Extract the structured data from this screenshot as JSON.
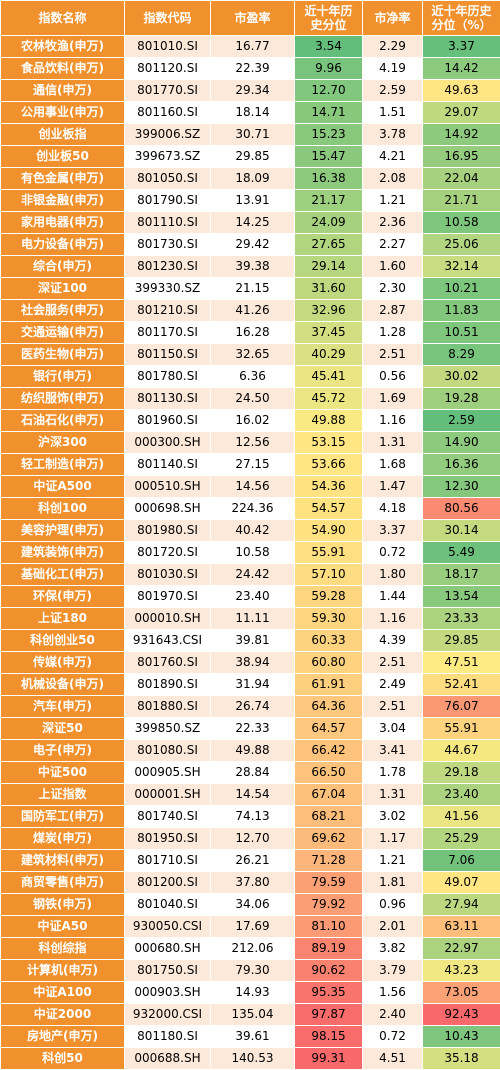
{
  "headers": [
    "指数名称",
    "指数代码",
    "市盈率",
    "近十年历史分位",
    "市净率",
    "近十年历史分位（%）"
  ],
  "chart_data": {
    "type": "table",
    "columns": [
      "指数名称",
      "指数代码",
      "市盈率",
      "近十年历史分位",
      "市净率",
      "近十年历史分位（%）"
    ],
    "rows": [
      [
        "农林牧渔(申万)",
        "801010.SI",
        "16.77",
        "3.54",
        "2.29",
        "3.37"
      ],
      [
        "食品饮料(申万)",
        "801120.SI",
        "22.39",
        "9.96",
        "4.19",
        "14.42"
      ],
      [
        "通信(申万)",
        "801770.SI",
        "29.34",
        "12.70",
        "2.59",
        "49.63"
      ],
      [
        "公用事业(申万)",
        "801160.SI",
        "18.14",
        "14.71",
        "1.51",
        "29.07"
      ],
      [
        "创业板指",
        "399006.SZ",
        "30.71",
        "15.23",
        "3.78",
        "14.92"
      ],
      [
        "创业板50",
        "399673.SZ",
        "29.85",
        "15.47",
        "4.21",
        "16.95"
      ],
      [
        "有色金属(申万)",
        "801050.SI",
        "18.09",
        "16.38",
        "2.08",
        "22.04"
      ],
      [
        "非银金融(申万)",
        "801790.SI",
        "13.91",
        "21.17",
        "1.21",
        "21.71"
      ],
      [
        "家用电器(申万)",
        "801110.SI",
        "14.25",
        "24.09",
        "2.36",
        "10.58"
      ],
      [
        "电力设备(申万)",
        "801730.SI",
        "29.42",
        "27.65",
        "2.27",
        "25.06"
      ],
      [
        "综合(申万)",
        "801230.SI",
        "39.38",
        "29.14",
        "1.60",
        "32.14"
      ],
      [
        "深证100",
        "399330.SZ",
        "21.15",
        "31.60",
        "2.30",
        "10.21"
      ],
      [
        "社会服务(申万)",
        "801210.SI",
        "41.26",
        "32.96",
        "2.87",
        "11.83"
      ],
      [
        "交通运输(申万)",
        "801170.SI",
        "16.28",
        "37.45",
        "1.28",
        "10.51"
      ],
      [
        "医药生物(申万)",
        "801150.SI",
        "32.65",
        "40.29",
        "2.51",
        "8.29"
      ],
      [
        "银行(申万)",
        "801780.SI",
        "6.36",
        "45.41",
        "0.56",
        "30.02"
      ],
      [
        "纺织服饰(申万)",
        "801130.SI",
        "24.50",
        "45.72",
        "1.69",
        "19.28"
      ],
      [
        "石油石化(申万)",
        "801960.SI",
        "16.02",
        "49.88",
        "1.16",
        "2.59"
      ],
      [
        "沪深300",
        "000300.SH",
        "12.56",
        "53.15",
        "1.31",
        "14.90"
      ],
      [
        "轻工制造(申万)",
        "801140.SI",
        "27.15",
        "53.66",
        "1.68",
        "16.36"
      ],
      [
        "中证A500",
        "000510.SH",
        "14.56",
        "54.36",
        "1.47",
        "12.30"
      ],
      [
        "科创100",
        "000698.SH",
        "224.36",
        "54.57",
        "4.18",
        "80.56"
      ],
      [
        "美容护理(申万)",
        "801980.SI",
        "40.42",
        "54.90",
        "3.37",
        "30.14"
      ],
      [
        "建筑装饰(申万)",
        "801720.SI",
        "10.58",
        "55.91",
        "0.72",
        "5.49"
      ],
      [
        "基础化工(申万)",
        "801030.SI",
        "24.42",
        "57.10",
        "1.80",
        "18.17"
      ],
      [
        "环保(申万)",
        "801970.SI",
        "23.40",
        "59.28",
        "1.44",
        "13.54"
      ],
      [
        "上证180",
        "000010.SH",
        "11.11",
        "59.30",
        "1.16",
        "23.33"
      ],
      [
        "科创创业50",
        "931643.CSI",
        "39.81",
        "60.33",
        "4.39",
        "29.85"
      ],
      [
        "传媒(申万)",
        "801760.SI",
        "38.94",
        "60.80",
        "2.51",
        "47.51"
      ],
      [
        "机械设备(申万)",
        "801890.SI",
        "31.94",
        "61.91",
        "2.49",
        "52.41"
      ],
      [
        "汽车(申万)",
        "801880.SI",
        "26.74",
        "64.36",
        "2.51",
        "76.07"
      ],
      [
        "深证50",
        "399850.SZ",
        "22.33",
        "64.57",
        "3.04",
        "55.91"
      ],
      [
        "电子(申万)",
        "801080.SI",
        "49.88",
        "66.42",
        "3.41",
        "44.67"
      ],
      [
        "中证500",
        "000905.SH",
        "28.84",
        "66.50",
        "1.78",
        "29.18"
      ],
      [
        "上证指数",
        "000001.SH",
        "14.54",
        "67.04",
        "1.31",
        "23.40"
      ],
      [
        "国防军工(申万)",
        "801740.SI",
        "74.13",
        "68.21",
        "3.02",
        "41.56"
      ],
      [
        "煤炭(申万)",
        "801950.SI",
        "12.70",
        "69.62",
        "1.17",
        "25.29"
      ],
      [
        "建筑材料(申万)",
        "801710.SI",
        "26.21",
        "71.28",
        "1.21",
        "7.06"
      ],
      [
        "商贸零售(申万)",
        "801200.SI",
        "37.80",
        "79.59",
        "1.81",
        "49.07"
      ],
      [
        "钢铁(申万)",
        "801040.SI",
        "34.06",
        "79.92",
        "0.96",
        "27.94"
      ],
      [
        "中证A50",
        "930050.CSI",
        "17.69",
        "81.10",
        "2.01",
        "63.11"
      ],
      [
        "科创综指",
        "000680.SH",
        "212.06",
        "89.19",
        "3.82",
        "22.97"
      ],
      [
        "计算机(申万)",
        "801750.SI",
        "79.30",
        "90.62",
        "3.79",
        "43.23"
      ],
      [
        "中证A100",
        "000903.SH",
        "14.93",
        "95.35",
        "1.56",
        "73.05"
      ],
      [
        "中证2000",
        "932000.CSI",
        "135.04",
        "97.87",
        "2.40",
        "92.43"
      ],
      [
        "房地产(申万)",
        "801180.SI",
        "39.61",
        "98.15",
        "0.72",
        "10.43"
      ],
      [
        "科创50",
        "000688.SH",
        "140.53",
        "99.31",
        "4.51",
        "35.18"
      ]
    ],
    "color_scale": {
      "low": "#63be7b",
      "mid": "#ffeb84",
      "high": "#f8696b"
    }
  }
}
